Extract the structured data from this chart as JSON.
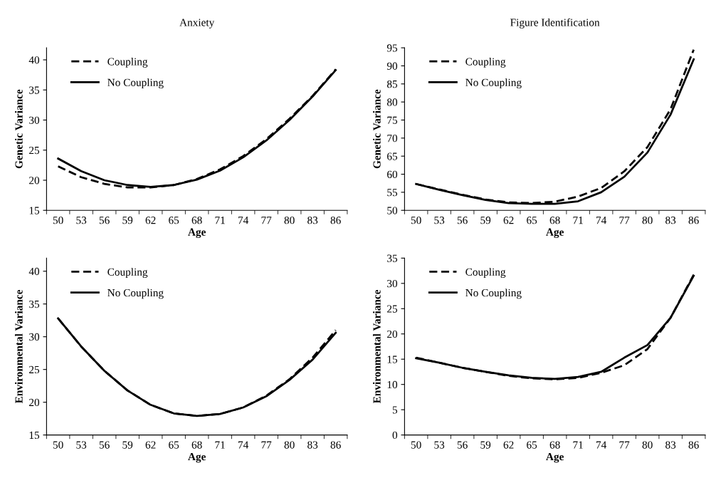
{
  "chart_data": [
    {
      "type": "line",
      "title": "Anxiety",
      "xlabel": "Age",
      "ylabel": "Genetic Variance",
      "categories": [
        "50",
        "53",
        "56",
        "59",
        "62",
        "65",
        "68",
        "71",
        "74",
        "77",
        "80",
        "83",
        "86"
      ],
      "ylim": [
        15,
        42
      ],
      "yticks": [
        15,
        20,
        25,
        30,
        35,
        40
      ],
      "grid": false,
      "legend": "top left",
      "series": [
        {
          "name": "Coupling",
          "color": "#000000",
          "line_style": "dashed",
          "values": [
            22.3,
            20.5,
            19.4,
            18.8,
            18.8,
            19.2,
            20.2,
            21.8,
            24.0,
            26.8,
            30.2,
            34.0,
            38.4
          ]
        },
        {
          "name": "No Coupling",
          "color": "#000000",
          "line_style": "solid",
          "values": [
            23.6,
            21.5,
            20.0,
            19.2,
            18.9,
            19.2,
            20.1,
            21.6,
            23.8,
            26.6,
            30.0,
            33.9,
            38.3
          ]
        }
      ]
    },
    {
      "type": "line",
      "title": "Figure Identification",
      "xlabel": "Age",
      "ylabel": "Genetic Variance",
      "categories": [
        "50",
        "53",
        "56",
        "59",
        "62",
        "65",
        "68",
        "71",
        "74",
        "77",
        "80",
        "83",
        "86"
      ],
      "ylim": [
        50,
        95
      ],
      "yticks": [
        50,
        55,
        60,
        65,
        70,
        75,
        80,
        85,
        90,
        95
      ],
      "grid": false,
      "legend": "top left",
      "series": [
        {
          "name": "Coupling",
          "color": "#000000",
          "line_style": "dashed",
          "values": [
            57.3,
            55.8,
            54.3,
            53.0,
            52.2,
            52.0,
            52.4,
            53.8,
            56.2,
            60.8,
            67.5,
            78.0,
            94.5
          ]
        },
        {
          "name": "No Coupling",
          "color": "#000000",
          "line_style": "solid",
          "values": [
            57.3,
            55.7,
            54.2,
            52.9,
            52.0,
            51.8,
            51.8,
            52.5,
            55.0,
            59.3,
            66.0,
            76.5,
            91.8
          ]
        }
      ]
    },
    {
      "type": "line",
      "xlabel": "Age",
      "ylabel": "Environmental Variance",
      "categories": [
        "50",
        "53",
        "56",
        "59",
        "62",
        "65",
        "68",
        "71",
        "74",
        "77",
        "80",
        "83",
        "86"
      ],
      "ylim": [
        15,
        42
      ],
      "yticks": [
        15,
        20,
        25,
        30,
        35,
        40
      ],
      "grid": false,
      "legend": "top left",
      "series": [
        {
          "name": "Coupling",
          "color": "#000000",
          "line_style": "dashed",
          "values": [
            32.8,
            28.5,
            24.8,
            21.8,
            19.6,
            18.3,
            17.9,
            18.2,
            19.2,
            21.0,
            23.5,
            26.8,
            31.0
          ]
        },
        {
          "name": "No Coupling",
          "color": "#000000",
          "line_style": "solid",
          "values": [
            32.8,
            28.5,
            24.8,
            21.8,
            19.6,
            18.3,
            17.9,
            18.2,
            19.2,
            20.9,
            23.4,
            26.5,
            30.6
          ]
        }
      ]
    },
    {
      "type": "line",
      "xlabel": "Age",
      "ylabel": "Environmental Variance",
      "categories": [
        "50",
        "53",
        "56",
        "59",
        "62",
        "65",
        "68",
        "71",
        "74",
        "77",
        "80",
        "83",
        "86"
      ],
      "ylim": [
        0,
        35
      ],
      "yticks": [
        0,
        5,
        10,
        15,
        20,
        25,
        30,
        35
      ],
      "grid": false,
      "legend": "top left",
      "series": [
        {
          "name": "Coupling",
          "color": "#000000",
          "line_style": "dashed",
          "values": [
            15.3,
            14.3,
            13.3,
            12.5,
            11.7,
            11.2,
            11.0,
            11.3,
            12.3,
            13.8,
            17.0,
            23.2,
            31.7
          ]
        },
        {
          "name": "No Coupling",
          "color": "#000000",
          "line_style": "solid",
          "values": [
            15.2,
            14.3,
            13.3,
            12.5,
            11.8,
            11.3,
            11.1,
            11.5,
            12.5,
            15.3,
            17.8,
            23.2,
            31.5
          ]
        }
      ]
    }
  ]
}
